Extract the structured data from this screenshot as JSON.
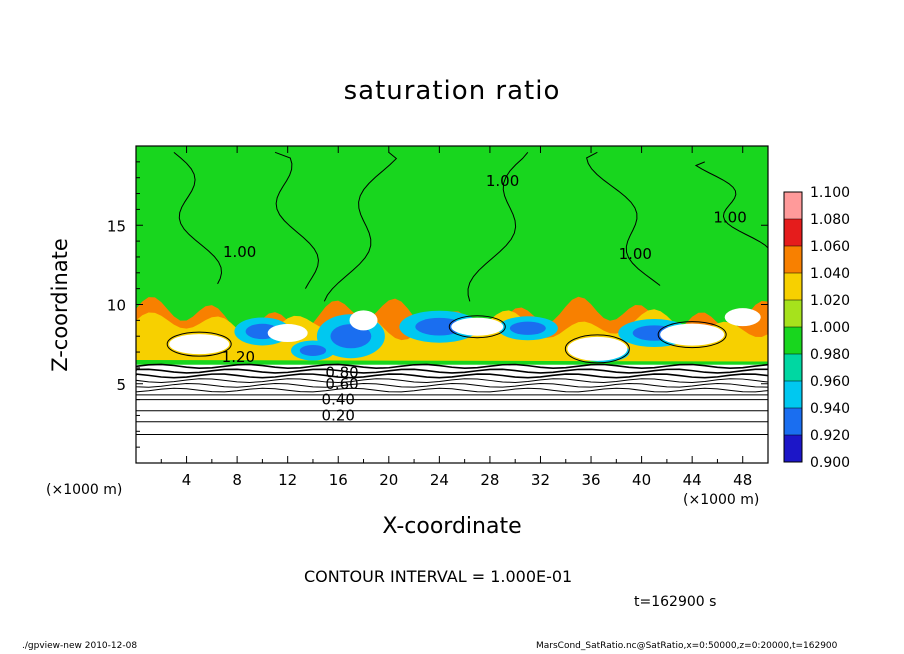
{
  "chart_data": {
    "type": "heatmap",
    "title": "saturation ratio",
    "xlabel": "X-coordinate",
    "ylabel": "Z-coordinate",
    "x_unit": "(×1000 m)",
    "x_unit_right": "(×1000 m)",
    "xlim": [
      0,
      50
    ],
    "ylim": [
      0,
      20
    ],
    "x_ticks": [
      4,
      8,
      12,
      16,
      20,
      24,
      28,
      32,
      36,
      40,
      44,
      48
    ],
    "y_ticks": [
      5,
      10,
      15
    ],
    "colorbar": {
      "levels": [
        0.9,
        0.92,
        0.94,
        0.96,
        0.98,
        1.0,
        1.02,
        1.04,
        1.06,
        1.08,
        1.1
      ],
      "labels": [
        "0.900",
        "0.920",
        "0.940",
        "0.960",
        "0.980",
        "1.000",
        "1.020",
        "1.040",
        "1.060",
        "1.080",
        "1.100"
      ],
      "colors": [
        "#6a0fb0",
        "#1c16c8",
        "#1a6ef0",
        "#00c8f0",
        "#00d7a2",
        "#18d61e",
        "#a6e21c",
        "#f7d000",
        "#f88000",
        "#e51c1c",
        "#ff9a9a"
      ]
    },
    "contour_labels": [
      {
        "text": "1.00",
        "x": 29.0,
        "z": 17.8
      },
      {
        "text": "1.00",
        "x": 8.2,
        "z": 13.3
      },
      {
        "text": "1.00",
        "x": 39.5,
        "z": 13.2
      },
      {
        "text": "1.00",
        "x": 47.0,
        "z": 15.5
      },
      {
        "text": "1.20",
        "x": 8.1,
        "z": 6.7
      },
      {
        "text": "0.80",
        "x": 16.3,
        "z": 5.7
      },
      {
        "text": "0.60",
        "x": 16.3,
        "z": 5.0
      },
      {
        "text": "0.40",
        "x": 16.0,
        "z": 4.0
      },
      {
        "text": "0.20",
        "x": 16.0,
        "z": 3.0
      }
    ],
    "contour_interval": 0.1
  },
  "annotations": {
    "contour_interval": "CONTOUR INTERVAL = 1.000E-01",
    "time": "t=162900 s"
  },
  "footer": {
    "left": "./gpview-new  2010-12-08",
    "right": "MarsCond_SatRatio.nc@SatRatio,x=0:50000,z=0:20000,t=162900"
  }
}
